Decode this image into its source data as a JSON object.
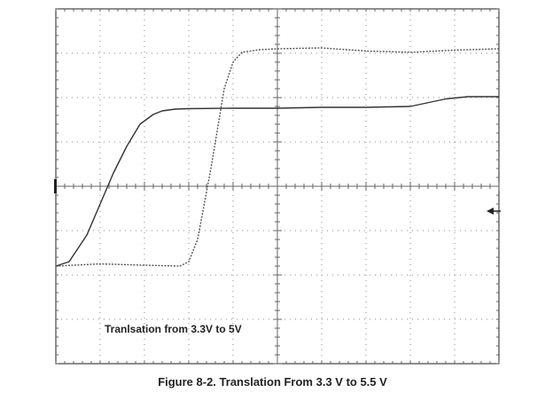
{
  "caption": "Figure 8-2. Translation From 3.3 V to 5.5 V",
  "chart_data": {
    "type": "line",
    "title": "",
    "xlabel": "",
    "ylabel": "",
    "divisions": {
      "x": 10,
      "y": 8
    },
    "xlim": [
      0,
      10
    ],
    "ylim": [
      0,
      8
    ],
    "grid": true,
    "annotation": "Tranlsation from 3.3V to 5V",
    "series": [
      {
        "style": "solid",
        "color": "#333333",
        "x": [
          0,
          0.3,
          0.7,
          1.0,
          1.3,
          1.6,
          1.9,
          2.2,
          2.4,
          2.7,
          3.0,
          4.0,
          5.0,
          6.0,
          7.0,
          8.0,
          8.8,
          9.3,
          10.0
        ],
        "y": [
          2.2,
          2.3,
          2.9,
          3.6,
          4.3,
          4.9,
          5.4,
          5.62,
          5.7,
          5.74,
          5.75,
          5.76,
          5.76,
          5.78,
          5.78,
          5.8,
          5.97,
          6.02,
          6.02
        ]
      },
      {
        "style": "dotted",
        "color": "#555555",
        "x": [
          0,
          1.0,
          2.0,
          2.8,
          3.0,
          3.2,
          3.5,
          3.8,
          4.0,
          4.2,
          4.6,
          5.0,
          6.0,
          7.0,
          8.0,
          9.0,
          10.0
        ],
        "y": [
          2.2,
          2.25,
          2.22,
          2.2,
          2.3,
          2.8,
          4.4,
          6.2,
          6.8,
          7.02,
          7.08,
          7.1,
          7.12,
          7.05,
          7.02,
          7.07,
          7.1
        ]
      }
    ]
  }
}
